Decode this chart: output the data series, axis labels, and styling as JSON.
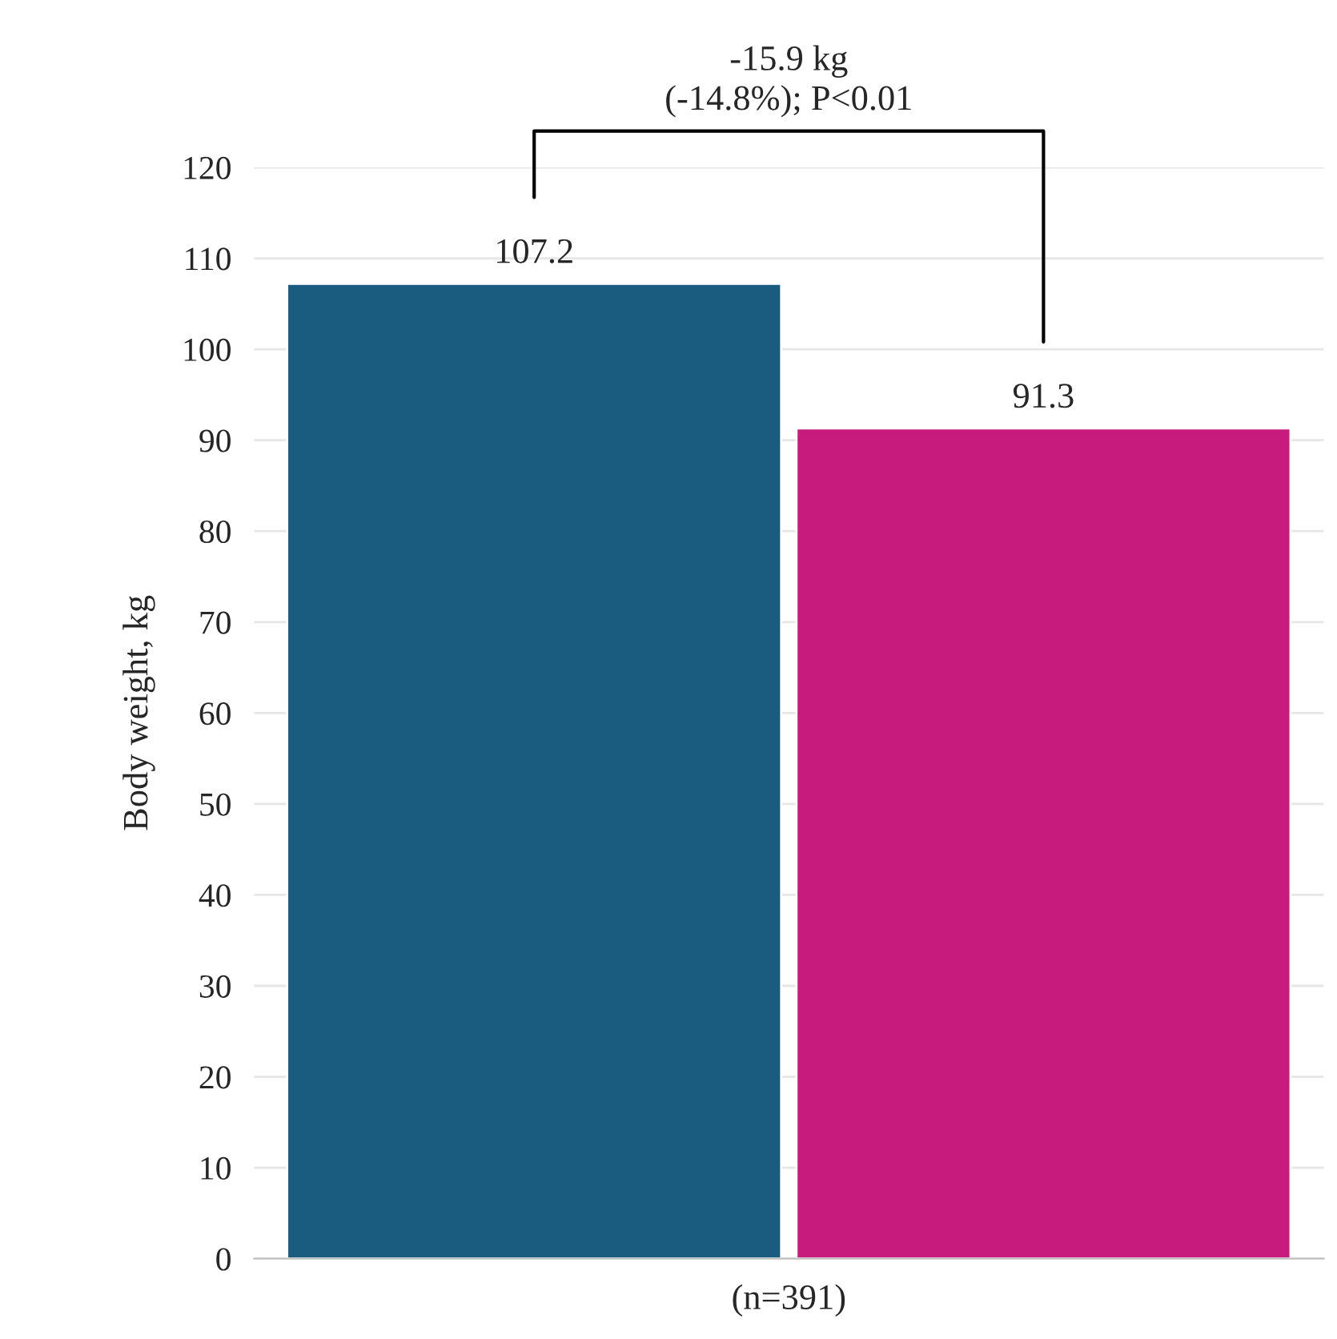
{
  "chart_data": {
    "type": "bar",
    "categories": [
      null,
      null
    ],
    "values": [
      107.2,
      91.3
    ],
    "colors": [
      "#1a5b80",
      "#c71b7e"
    ],
    "ylabel": "Body weight, kg",
    "xlabel": "(n=391)",
    "ylim": [
      0,
      120
    ],
    "yticks": [
      0,
      10,
      20,
      30,
      40,
      50,
      60,
      70,
      80,
      90,
      100,
      110,
      120
    ],
    "grid": "y",
    "data_labels": true,
    "annotations": [
      "-15.9 kg\n(-14.8%); P<0.01"
    ]
  }
}
